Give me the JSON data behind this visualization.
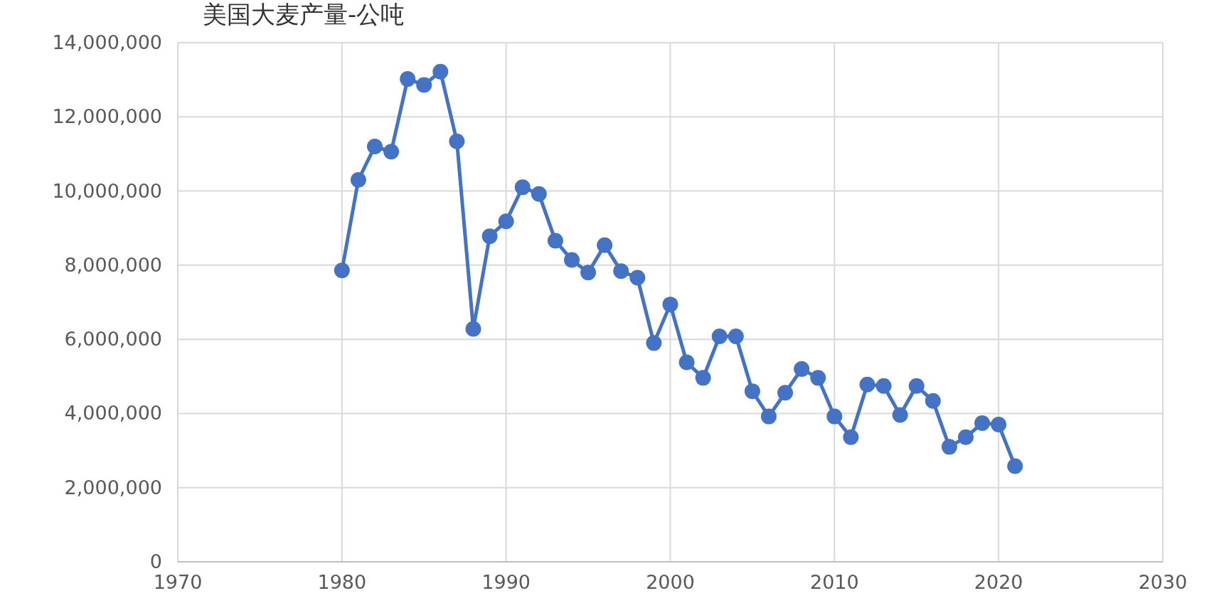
{
  "chart_data": {
    "type": "line",
    "title": "美国大麦产量-公吨",
    "x": [
      1980,
      1981,
      1982,
      1983,
      1984,
      1985,
      1986,
      1987,
      1988,
      1989,
      1990,
      1991,
      1992,
      1993,
      1994,
      1995,
      1996,
      1997,
      1998,
      1999,
      2000,
      2001,
      2002,
      2003,
      2004,
      2005,
      2006,
      2007,
      2008,
      2009,
      2010,
      2011,
      2012,
      2013,
      2014,
      2015,
      2016,
      2017,
      2018,
      2019,
      2020,
      2021
    ],
    "values": [
      7860000,
      10300000,
      11200000,
      11060000,
      13020000,
      12860000,
      13220000,
      11340000,
      6280000,
      8780000,
      9180000,
      10100000,
      9920000,
      8660000,
      8140000,
      7800000,
      8540000,
      7840000,
      7660000,
      5900000,
      6940000,
      5380000,
      4960000,
      6080000,
      6080000,
      4600000,
      3920000,
      4560000,
      5200000,
      4960000,
      3920000,
      3360000,
      4780000,
      4740000,
      3960000,
      4740000,
      4340000,
      3100000,
      3360000,
      3740000,
      3700000,
      2580000
    ],
    "color": "#4472c4",
    "marker": "circle",
    "line_style": "solid",
    "grid": true,
    "xlim": [
      1970,
      2030
    ],
    "xticks": [
      1970,
      1980,
      1990,
      2000,
      2010,
      2020,
      2030
    ],
    "ylim": [
      0,
      14000000
    ],
    "yticks": [
      0,
      {
        "value": 2000000,
        "label": "2,000,000"
      },
      {
        "value": 4000000,
        "label": "4,000,000"
      },
      {
        "value": 6000000,
        "label": "6,000,000"
      },
      {
        "value": 8000000,
        "label": "8,000,000"
      },
      {
        "value": 10000000,
        "label": "10,000,000"
      },
      {
        "value": 12000000,
        "label": "12,000,000"
      },
      {
        "value": 14000000,
        "label": "14,000,000"
      }
    ]
  }
}
